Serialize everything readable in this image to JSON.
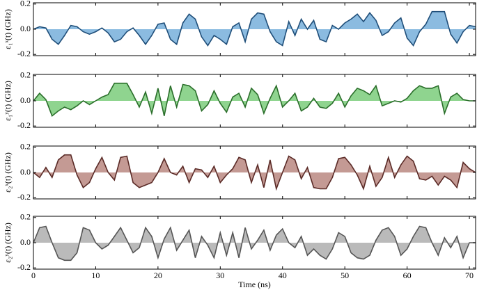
{
  "chart_data": [
    {
      "type": "area",
      "ylabel": "ε₁ˣ(t) (GHz)",
      "color": "#8bbbe0",
      "line_color": "#1f4e79",
      "x": [
        0,
        1,
        2,
        3,
        4,
        5,
        6,
        7,
        8,
        9,
        10,
        11,
        12,
        13,
        14,
        15,
        16,
        17,
        18,
        19,
        20,
        21,
        22,
        23,
        24,
        25,
        26,
        27,
        28,
        29,
        30,
        31,
        32,
        33,
        34,
        35,
        36,
        37,
        38,
        39,
        40,
        41,
        42,
        43,
        44,
        45,
        46,
        47,
        48,
        49,
        50,
        51,
        52,
        53,
        54,
        55,
        56,
        57,
        58,
        59,
        60,
        61,
        62,
        63,
        64,
        65,
        66,
        67,
        68,
        69,
        70,
        71
      ],
      "values": [
        0.0,
        0.02,
        0.01,
        -0.08,
        -0.12,
        -0.05,
        0.03,
        0.02,
        -0.02,
        -0.04,
        -0.02,
        0.01,
        -0.03,
        -0.1,
        -0.08,
        -0.02,
        0.01,
        -0.05,
        -0.12,
        -0.05,
        0.04,
        0.05,
        -0.08,
        -0.12,
        0.05,
        0.12,
        0.08,
        -0.06,
        -0.13,
        -0.05,
        -0.08,
        -0.12,
        0.02,
        0.05,
        -0.1,
        0.08,
        0.13,
        0.12,
        -0.02,
        -0.1,
        -0.13,
        0.06,
        -0.05,
        0.08,
        0.0,
        0.07,
        -0.08,
        -0.1,
        0.03,
        0.0,
        0.05,
        0.08,
        0.12,
        0.06,
        0.13,
        0.07,
        -0.05,
        -0.02,
        0.05,
        0.09,
        -0.07,
        -0.13,
        -0.02,
        0.04,
        0.14,
        0.14,
        0.14,
        -0.04,
        -0.11,
        -0.02,
        0.03,
        0.02
      ],
      "xlim": [
        0,
        71
      ],
      "xticks": [
        0,
        10,
        20,
        30,
        40,
        50,
        60,
        70
      ],
      "ylim": [
        -0.21,
        0.21
      ],
      "yticks": [
        -0.2,
        {
          "value": 0,
          "label": "0.0"
        },
        0.2
      ]
    },
    {
      "type": "area",
      "ylabel": "ε₁ʸ(t) (GHz)",
      "color": "#8fd48f",
      "line_color": "#2a6e2a",
      "x": [
        0,
        1,
        2,
        3,
        4,
        5,
        6,
        7,
        8,
        9,
        10,
        11,
        12,
        13,
        14,
        15,
        16,
        17,
        18,
        19,
        20,
        21,
        22,
        23,
        24,
        25,
        26,
        27,
        28,
        29,
        30,
        31,
        32,
        33,
        34,
        35,
        36,
        37,
        38,
        39,
        40,
        41,
        42,
        43,
        44,
        45,
        46,
        47,
        48,
        49,
        50,
        51,
        52,
        53,
        54,
        55,
        56,
        57,
        58,
        59,
        60,
        61,
        62,
        63,
        64,
        65,
        66,
        67,
        68,
        69,
        70,
        71
      ],
      "values": [
        0.0,
        0.06,
        0.01,
        -0.12,
        -0.08,
        -0.05,
        -0.07,
        -0.04,
        0.0,
        -0.03,
        0.0,
        0.03,
        0.05,
        0.14,
        0.14,
        0.14,
        0.05,
        -0.05,
        0.07,
        -0.1,
        0.1,
        -0.12,
        0.12,
        -0.05,
        0.13,
        0.12,
        0.08,
        -0.08,
        -0.03,
        0.08,
        -0.02,
        -0.09,
        0.03,
        0.06,
        -0.05,
        0.1,
        0.05,
        -0.1,
        0.02,
        0.12,
        -0.05,
        0.0,
        0.06,
        -0.08,
        -0.05,
        0.02,
        -0.05,
        -0.06,
        -0.02,
        0.06,
        -0.05,
        0.04,
        0.1,
        0.08,
        0.05,
        0.12,
        -0.04,
        -0.02,
        0.0,
        -0.01,
        0.02,
        0.08,
        0.12,
        0.1,
        0.1,
        0.12,
        -0.1,
        0.03,
        0.06,
        0.01,
        0.0,
        0.0
      ],
      "xlim": [
        0,
        71
      ],
      "xticks": [
        0,
        10,
        20,
        30,
        40,
        50,
        60,
        70
      ],
      "ylim": [
        -0.21,
        0.21
      ],
      "yticks": [
        -0.2,
        {
          "value": 0,
          "label": "0.0"
        },
        0.2
      ]
    },
    {
      "type": "area",
      "ylabel": "ε₂ˣ(t) (GHz)",
      "color": "#c49a94",
      "line_color": "#5a2a26",
      "x": [
        0,
        1,
        2,
        3,
        4,
        5,
        6,
        7,
        8,
        9,
        10,
        11,
        12,
        13,
        14,
        15,
        16,
        17,
        18,
        19,
        20,
        21,
        22,
        23,
        24,
        25,
        26,
        27,
        28,
        29,
        30,
        31,
        32,
        33,
        34,
        35,
        36,
        37,
        38,
        39,
        40,
        41,
        42,
        43,
        44,
        45,
        46,
        47,
        48,
        49,
        50,
        51,
        52,
        53,
        54,
        55,
        56,
        57,
        58,
        59,
        60,
        61,
        62,
        63,
        64,
        65,
        66,
        67,
        68,
        69,
        70,
        71
      ],
      "values": [
        0.0,
        -0.04,
        0.04,
        -0.04,
        0.1,
        0.14,
        0.14,
        -0.02,
        -0.12,
        -0.08,
        0.03,
        0.12,
        0.0,
        -0.06,
        0.12,
        0.13,
        -0.08,
        -0.12,
        -0.1,
        -0.08,
        0.0,
        0.11,
        0.0,
        -0.02,
        0.05,
        -0.08,
        0.03,
        0.02,
        -0.04,
        0.05,
        -0.08,
        -0.02,
        0.03,
        0.12,
        0.1,
        -0.08,
        0.06,
        -0.12,
        0.1,
        -0.13,
        0.0,
        0.13,
        0.1,
        -0.05,
        0.04,
        -0.12,
        -0.13,
        -0.13,
        -0.04,
        0.11,
        0.12,
        0.06,
        -0.02,
        -0.13,
        0.05,
        -0.11,
        -0.04,
        0.12,
        -0.04,
        0.06,
        0.13,
        0.09,
        -0.05,
        -0.06,
        -0.03,
        -0.1,
        -0.03,
        -0.06,
        -0.12,
        0.08,
        0.03,
        0.0
      ],
      "xlim": [
        0,
        71
      ],
      "xticks": [
        0,
        10,
        20,
        30,
        40,
        50,
        60,
        70
      ],
      "ylim": [
        -0.21,
        0.21
      ],
      "yticks": [
        -0.2,
        {
          "value": 0,
          "label": "0.0"
        },
        0.2
      ]
    },
    {
      "type": "area",
      "ylabel": "ε₂ʸ(t) (GHz)",
      "xlabel": "Time (ns)",
      "color": "#bababa",
      "line_color": "#555555",
      "x": [
        0,
        1,
        2,
        3,
        4,
        5,
        6,
        7,
        8,
        9,
        10,
        11,
        12,
        13,
        14,
        15,
        16,
        17,
        18,
        19,
        20,
        21,
        22,
        23,
        24,
        25,
        26,
        27,
        28,
        29,
        30,
        31,
        32,
        33,
        34,
        35,
        36,
        37,
        38,
        39,
        40,
        41,
        42,
        43,
        44,
        45,
        46,
        47,
        48,
        49,
        50,
        51,
        52,
        53,
        54,
        55,
        56,
        57,
        58,
        59,
        60,
        61,
        62,
        63,
        64,
        65,
        66,
        67,
        68,
        69,
        70,
        71
      ],
      "values": [
        0.0,
        0.12,
        0.13,
        0.0,
        -0.12,
        -0.14,
        -0.14,
        -0.08,
        0.12,
        0.1,
        0.0,
        -0.05,
        -0.02,
        0.05,
        0.12,
        0.02,
        -0.08,
        -0.04,
        0.12,
        0.05,
        -0.12,
        0.03,
        0.12,
        -0.06,
        0.02,
        0.1,
        -0.12,
        0.05,
        -0.02,
        -0.12,
        0.08,
        -0.1,
        0.08,
        -0.12,
        0.12,
        -0.05,
        0.02,
        0.1,
        -0.06,
        0.06,
        0.11,
        0.0,
        -0.04,
        0.05,
        -0.1,
        -0.05,
        -0.1,
        -0.13,
        -0.05,
        0.08,
        0.05,
        -0.08,
        -0.12,
        -0.13,
        -0.1,
        0.02,
        0.1,
        0.12,
        0.05,
        -0.1,
        -0.05,
        0.05,
        0.13,
        0.12,
        0.0,
        -0.1,
        0.04,
        -0.04,
        0.05,
        -0.12,
        0.0,
        0.0
      ],
      "xlim": [
        0,
        71
      ],
      "xticks": [
        0,
        10,
        20,
        30,
        40,
        50,
        60,
        70
      ],
      "ylim": [
        -0.21,
        0.21
      ],
      "yticks": [
        -0.2,
        {
          "value": 0,
          "label": "0.0"
        },
        0.2
      ]
    }
  ]
}
